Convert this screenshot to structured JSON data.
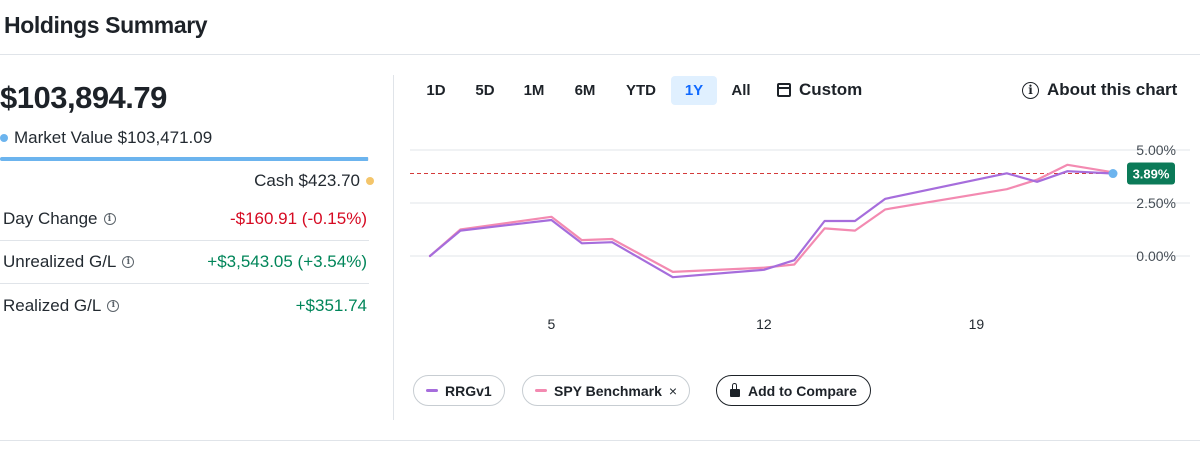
{
  "header": {
    "title": "Holdings Summary"
  },
  "summary": {
    "total_value": "$103,894.79",
    "market_value_label": "Market Value",
    "market_value": "$103,471.09",
    "cash_label": "Cash",
    "cash_value": "$423.70",
    "market_value_share": 0.996
  },
  "metrics": [
    {
      "label": "Day Change",
      "value": "-$160.91 (-0.15%)",
      "tone": "neg"
    },
    {
      "label": "Unrealized G/L",
      "value": "+$3,543.05 (+3.54%)",
      "tone": "pos"
    },
    {
      "label": "Realized G/L",
      "value": "+$351.74",
      "tone": "pos"
    }
  ],
  "range_tabs": [
    {
      "label": "1D",
      "active": false
    },
    {
      "label": "5D",
      "active": false
    },
    {
      "label": "1M",
      "active": false
    },
    {
      "label": "6M",
      "active": false
    },
    {
      "label": "YTD",
      "active": false
    },
    {
      "label": "1Y",
      "active": true
    },
    {
      "label": "All",
      "active": false
    }
  ],
  "custom_label": "Custom",
  "about_label": "About this chart",
  "colors": {
    "rrg": "#a66ddc",
    "spy": "#f38ab1",
    "current_badge": "#0b7a58",
    "reference_line": "#d43a3a",
    "last_point": "#6cb4ee",
    "grid": "#e0e4e9"
  },
  "chart_data": {
    "type": "line",
    "x_ticks": [
      "5",
      "12",
      "19"
    ],
    "y_ticks": [
      "5.00%",
      "2.50%",
      "0.00%"
    ],
    "ylim": [
      -1.0,
      5.0
    ],
    "current_value_label": "3.89%",
    "reference_value": 3.89,
    "series": [
      {
        "name": "RRGv1",
        "points": [
          [
            1,
            0
          ],
          [
            2,
            1.2
          ],
          [
            5,
            1.7
          ],
          [
            6,
            0.6
          ],
          [
            7,
            0.65
          ],
          [
            9,
            -1.0
          ],
          [
            12,
            -0.65
          ],
          [
            13,
            -0.2
          ],
          [
            14,
            1.65
          ],
          [
            15,
            1.65
          ],
          [
            16,
            2.7
          ],
          [
            20,
            3.9
          ],
          [
            21,
            3.5
          ],
          [
            22,
            4.0
          ],
          [
            23.5,
            3.89
          ]
        ]
      },
      {
        "name": "SPY Benchmark",
        "points": [
          [
            1,
            0
          ],
          [
            2,
            1.25
          ],
          [
            5,
            1.85
          ],
          [
            6,
            0.75
          ],
          [
            7,
            0.8
          ],
          [
            9,
            -0.75
          ],
          [
            12,
            -0.55
          ],
          [
            13,
            -0.4
          ],
          [
            14,
            1.3
          ],
          [
            15,
            1.2
          ],
          [
            16,
            2.2
          ],
          [
            20,
            3.15
          ],
          [
            21,
            3.6
          ],
          [
            22,
            4.3
          ],
          [
            23.5,
            3.95
          ]
        ]
      }
    ]
  },
  "legend": {
    "rrg_label": "RRGv1",
    "spy_label": "SPY Benchmark",
    "spy_remove": "×",
    "compare_label": "Add to Compare"
  }
}
